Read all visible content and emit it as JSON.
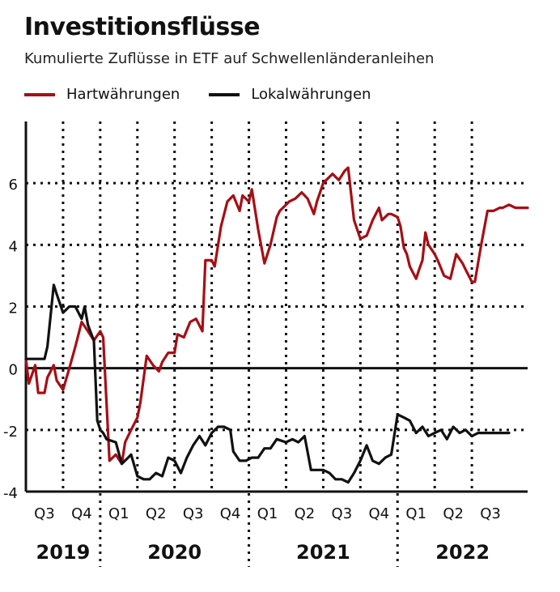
{
  "chart_data": {
    "type": "line",
    "title": "Investitionsflüsse",
    "subtitle": "Kumulierte Zuflüsse in ETF auf Schwellenländeranleihen",
    "legend": "top-left",
    "grid": true,
    "ylim": [
      -4,
      8
    ],
    "yticks": [
      6,
      4,
      2,
      0,
      -2,
      -4
    ],
    "xlim": [
      0,
      13.5
    ],
    "quarter_ticks": [
      "Q3",
      "Q4",
      "Q1",
      "Q2",
      "Q3",
      "Q4",
      "Q1",
      "Q2",
      "Q3",
      "Q4",
      "Q1",
      "Q2",
      "Q3"
    ],
    "years": [
      {
        "label": "2019",
        "center": 1.0
      },
      {
        "label": "2020",
        "center": 4.0
      },
      {
        "label": "2021",
        "center": 8.0
      },
      {
        "label": "2022",
        "center": 11.75
      }
    ],
    "year_separators": [
      2,
      6,
      10
    ],
    "series": [
      {
        "name": "Hartwährungen",
        "color": "#a50f15",
        "x": [
          0,
          0.08,
          0.25,
          0.33,
          0.5,
          0.58,
          0.75,
          0.83,
          1.0,
          1.17,
          1.33,
          1.5,
          1.67,
          1.83,
          2.0,
          2.08,
          2.25,
          2.42,
          2.58,
          2.67,
          2.83,
          3.0,
          3.08,
          3.25,
          3.42,
          3.58,
          3.67,
          3.83,
          4.0,
          4.08,
          4.25,
          4.42,
          4.58,
          4.75,
          4.83,
          5.0,
          5.08,
          5.25,
          5.42,
          5.58,
          5.75,
          5.83,
          6.0,
          6.08,
          6.25,
          6.42,
          6.58,
          6.75,
          6.83,
          7.0,
          7.08,
          7.25,
          7.42,
          7.58,
          7.75,
          7.83,
          8.0,
          8.08,
          8.25,
          8.42,
          8.58,
          8.67,
          8.83,
          9.0,
          9.17,
          9.33,
          9.5,
          9.58,
          9.75,
          9.83,
          10.0,
          10.08,
          10.17,
          10.25,
          10.33,
          10.5,
          10.58,
          10.67,
          10.75,
          10.83,
          11.0,
          11.08,
          11.25,
          11.42,
          11.58,
          11.75,
          11.83,
          12.0,
          12.08,
          12.25,
          12.42,
          12.58,
          12.75,
          12.83,
          13.0,
          13.17,
          13.33,
          13.5
        ],
        "values": [
          0.3,
          -0.5,
          0.1,
          -0.8,
          -0.8,
          -0.3,
          0.1,
          -0.4,
          -0.7,
          0.0,
          0.7,
          1.5,
          1.2,
          0.9,
          1.2,
          1.0,
          -3.0,
          -2.8,
          -3.1,
          -2.4,
          -2.0,
          -1.6,
          -1.1,
          0.4,
          0.1,
          -0.1,
          0.2,
          0.5,
          0.5,
          1.1,
          1.0,
          1.5,
          1.6,
          1.2,
          3.5,
          3.5,
          3.3,
          4.6,
          5.4,
          5.6,
          5.1,
          5.6,
          5.4,
          5.8,
          4.5,
          3.4,
          4.0,
          4.9,
          5.1,
          5.3,
          5.4,
          5.5,
          5.7,
          5.5,
          5.0,
          5.4,
          6.0,
          6.1,
          6.3,
          6.1,
          6.4,
          6.5,
          4.8,
          4.2,
          4.3,
          4.8,
          5.2,
          4.8,
          5.0,
          5.0,
          4.9,
          4.6,
          3.9,
          3.7,
          3.3,
          2.9,
          3.2,
          3.5,
          4.4,
          4.0,
          3.7,
          3.5,
          3.0,
          2.9,
          3.7,
          3.4,
          3.2,
          2.8,
          2.8,
          4.0,
          5.1,
          5.1,
          5.2,
          5.2,
          5.3,
          5.2,
          5.2,
          5.2
        ]
      },
      {
        "name": "Lokalwährungen",
        "color": "#111111",
        "x": [
          0,
          0.33,
          0.5,
          0.58,
          0.75,
          0.83,
          1.0,
          1.17,
          1.33,
          1.5,
          1.58,
          1.67,
          1.83,
          1.92,
          2.0,
          2.08,
          2.17,
          2.42,
          2.58,
          2.75,
          2.83,
          3.0,
          3.17,
          3.33,
          3.5,
          3.67,
          3.83,
          4.0,
          4.17,
          4.33,
          4.5,
          4.67,
          4.83,
          5.0,
          5.17,
          5.33,
          5.5,
          5.58,
          5.75,
          5.92,
          6.08,
          6.25,
          6.42,
          6.58,
          6.75,
          7.0,
          7.17,
          7.33,
          7.5,
          7.67,
          7.83,
          8.0,
          8.17,
          8.33,
          8.5,
          8.67,
          8.83,
          9.0,
          9.17,
          9.33,
          9.5,
          9.67,
          9.83,
          10.0,
          10.17,
          10.33,
          10.5,
          10.67,
          10.83,
          11.0,
          11.17,
          11.33,
          11.5,
          11.67,
          11.83,
          12.0,
          12.17,
          12.33,
          12.5,
          12.67,
          12.83,
          13.0
        ],
        "values": [
          0.3,
          0.3,
          0.3,
          0.7,
          2.7,
          2.4,
          1.8,
          2.0,
          2.0,
          1.6,
          2.0,
          1.4,
          0.9,
          -1.7,
          -2.0,
          -2.1,
          -2.3,
          -2.4,
          -3.1,
          -2.9,
          -2.8,
          -3.5,
          -3.6,
          -3.6,
          -3.4,
          -3.5,
          -2.9,
          -3.0,
          -3.4,
          -2.9,
          -2.5,
          -2.2,
          -2.5,
          -2.1,
          -1.9,
          -1.9,
          -2.0,
          -2.7,
          -3.0,
          -3.0,
          -2.9,
          -2.9,
          -2.6,
          -2.6,
          -2.3,
          -2.4,
          -2.3,
          -2.4,
          -2.2,
          -3.3,
          -3.3,
          -3.3,
          -3.4,
          -3.6,
          -3.6,
          -3.7,
          -3.4,
          -3.0,
          -2.5,
          -3.0,
          -3.1,
          -2.9,
          -2.8,
          -1.5,
          -1.6,
          -1.7,
          -2.1,
          -1.9,
          -2.2,
          -2.1,
          -2.0,
          -2.3,
          -1.9,
          -2.1,
          -2.0,
          -2.2,
          -2.1,
          -2.1,
          -2.1,
          -2.1,
          -2.1,
          -2.1
        ]
      }
    ]
  }
}
